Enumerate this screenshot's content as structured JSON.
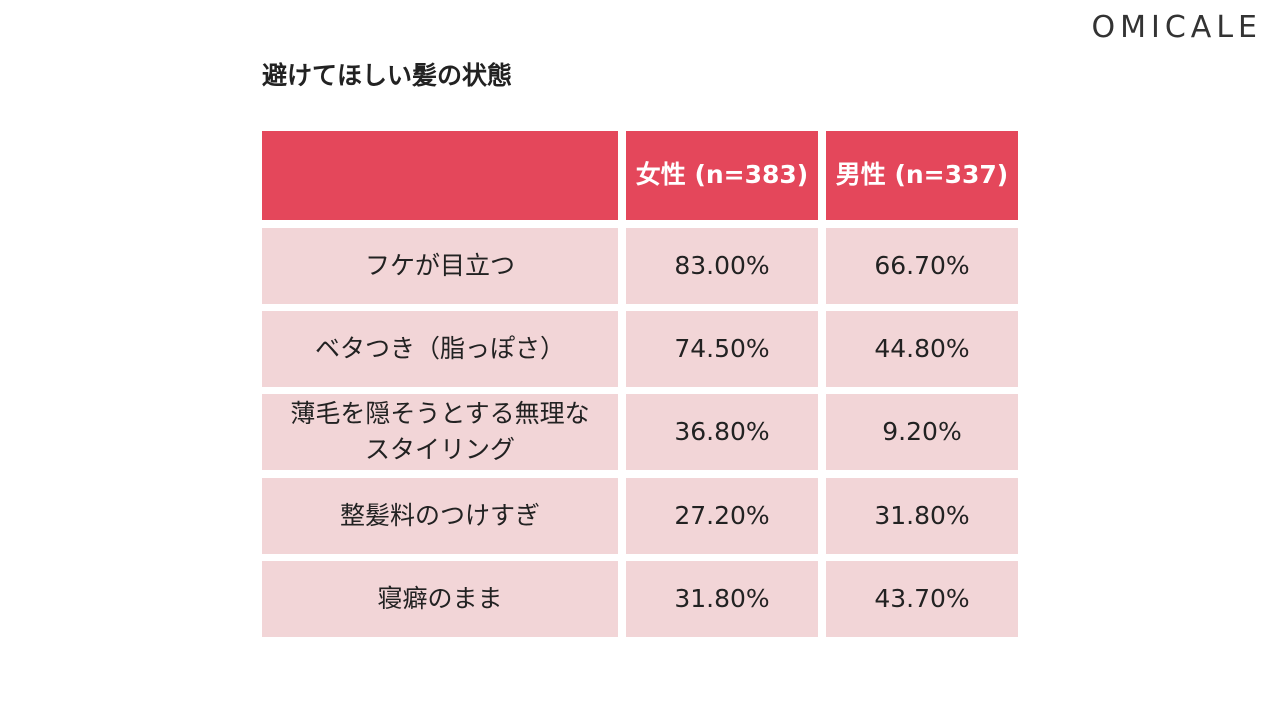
{
  "logo": "OMICALE",
  "title": "避けてほしい髪の状態",
  "table": {
    "headers": [
      "女性 (n=383)",
      "男性 (n=337)"
    ],
    "rows": [
      [
        "フケが目立つ",
        "83.00%",
        "66.70%"
      ],
      [
        "ベタつき（脂っぽさ）",
        "74.50%",
        "44.80%"
      ],
      [
        "薄毛を隠そうとする無理な\nスタイリング",
        "36.80%",
        "9.20%"
      ],
      [
        "整髪料のつけすぎ",
        "27.20%",
        "31.80%"
      ],
      [
        "寝癖のまま",
        "31.80%",
        "43.70%"
      ]
    ]
  }
}
